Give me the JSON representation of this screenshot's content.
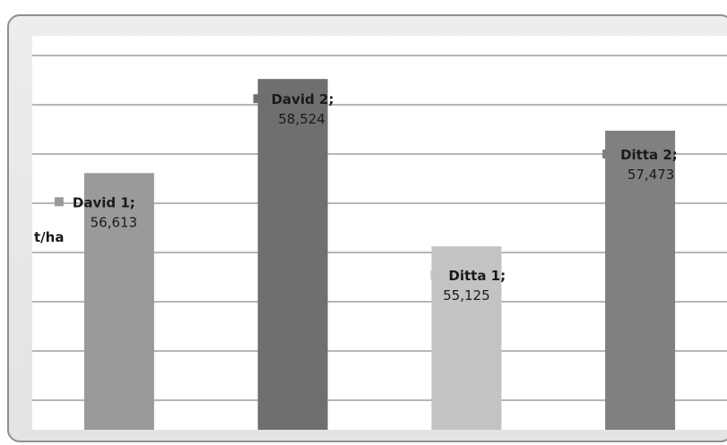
{
  "chart_data": {
    "type": "bar",
    "ylabel": "t/ha",
    "categories": [
      "David 1",
      "David 2",
      "Ditta 1",
      "Ditta 2"
    ],
    "values": [
      56.613,
      58.524,
      55.125,
      57.473
    ],
    "value_labels": [
      "56,613",
      "58,524",
      "55,125",
      "57,473"
    ],
    "ylim": [
      51.4,
      59.4
    ],
    "gridline_step": 1,
    "grid": true,
    "legend": "none",
    "colors": [
      "#9a9a9a",
      "#6f6f6f",
      "#c3c3c3",
      "#808080"
    ]
  }
}
